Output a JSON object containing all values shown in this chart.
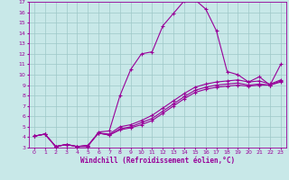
{
  "title": "",
  "xlabel": "Windchill (Refroidissement éolien,°C)",
  "ylabel": "",
  "background_color": "#c8e8e8",
  "line_color": "#990099",
  "grid_color": "#9ec8c8",
  "xlim": [
    -0.5,
    23.5
  ],
  "ylim": [
    3,
    17
  ],
  "xticks": [
    0,
    1,
    2,
    3,
    4,
    5,
    6,
    7,
    8,
    9,
    10,
    11,
    12,
    13,
    14,
    15,
    16,
    17,
    18,
    19,
    20,
    21,
    22,
    23
  ],
  "yticks": [
    3,
    4,
    5,
    6,
    7,
    8,
    9,
    10,
    11,
    12,
    13,
    14,
    15,
    16,
    17
  ],
  "curves": [
    [
      4.1,
      4.3,
      3.1,
      3.3,
      3.1,
      3.1,
      4.5,
      4.6,
      8.0,
      10.5,
      12.0,
      12.2,
      14.7,
      15.9,
      17.1,
      17.2,
      16.3,
      14.2,
      10.3,
      10.0,
      9.3,
      9.8,
      9.0,
      11.0
    ],
    [
      4.1,
      4.3,
      3.1,
      3.3,
      3.1,
      3.2,
      4.4,
      4.3,
      5.0,
      5.2,
      5.6,
      6.1,
      6.8,
      7.5,
      8.2,
      8.8,
      9.1,
      9.3,
      9.4,
      9.5,
      9.3,
      9.4,
      9.1,
      9.5
    ],
    [
      4.1,
      4.3,
      3.1,
      3.3,
      3.1,
      3.2,
      4.4,
      4.2,
      4.8,
      5.0,
      5.4,
      5.8,
      6.5,
      7.2,
      7.9,
      8.5,
      8.8,
      9.0,
      9.1,
      9.2,
      9.0,
      9.1,
      9.0,
      9.4
    ],
    [
      4.1,
      4.3,
      3.1,
      3.3,
      3.1,
      3.2,
      4.4,
      4.2,
      4.7,
      4.9,
      5.2,
      5.6,
      6.3,
      7.0,
      7.7,
      8.3,
      8.6,
      8.8,
      8.9,
      9.0,
      8.9,
      9.0,
      9.0,
      9.3
    ]
  ],
  "marker": "+",
  "markersize": 3,
  "linewidth": 0.8,
  "tick_fontsize": 4.5,
  "label_fontsize": 5.5
}
